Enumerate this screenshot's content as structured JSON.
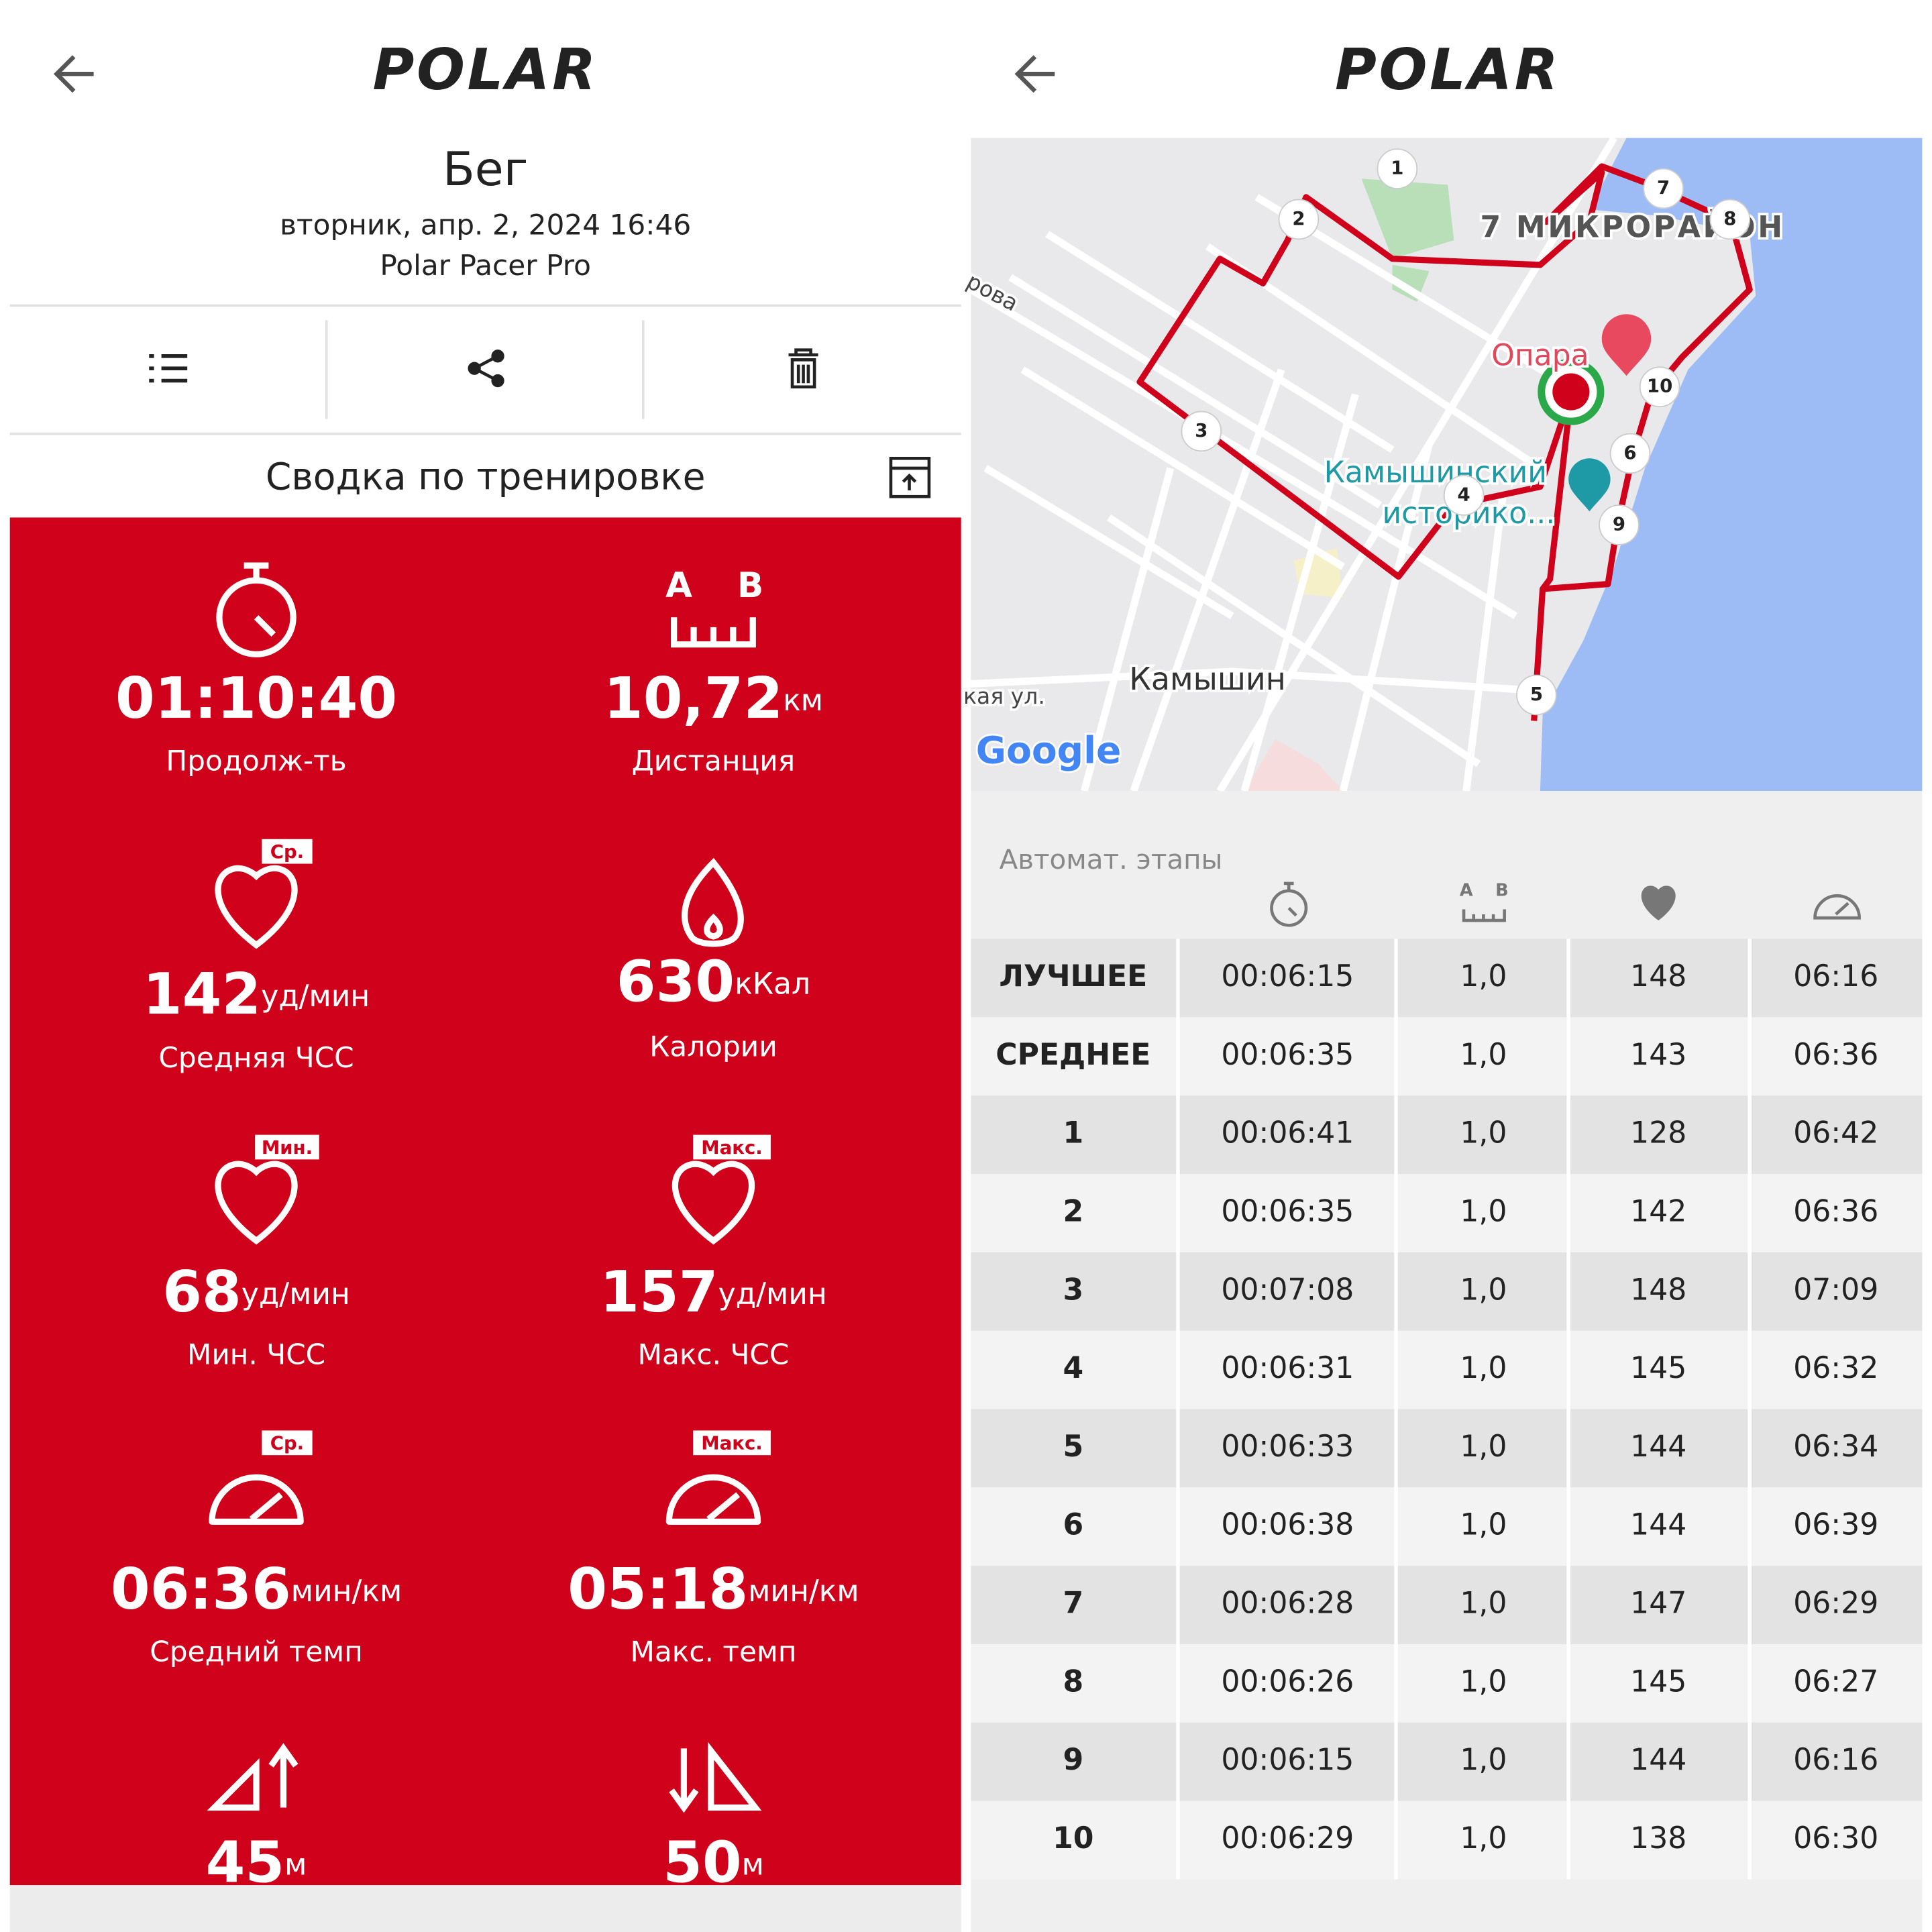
{
  "left": {
    "logo": "POLAR",
    "title": "Бег",
    "date": "вторник, апр. 2, 2024 16:46",
    "device": "Polar Pacer Pro",
    "section": "Сводка по тренировке",
    "distance_icon": {
      "a": "A",
      "b": "B"
    },
    "stats": [
      {
        "value": "01:10:40",
        "label": "Продолж-ть"
      },
      {
        "value": "10,72",
        "unit": "км",
        "label": "Дистанция"
      },
      {
        "value": "142",
        "unit": "уд/мин",
        "label": "Средняя ЧСС",
        "badge": "Ср."
      },
      {
        "value": "630",
        "unit": "кКал",
        "label": "Калории"
      },
      {
        "value": "68",
        "unit": "уд/мин",
        "label": "Мин. ЧСС",
        "badge": "Мин."
      },
      {
        "value": "157",
        "unit": "уд/мин",
        "label": "Макс. ЧСС",
        "badge": "Макс."
      },
      {
        "value": "06:36",
        "unit": "мин/км",
        "label": "Средний темп",
        "badge": "Ср."
      },
      {
        "value": "05:18",
        "unit": "мин/км",
        "label": "Макс. темп",
        "badge": "Макс."
      },
      {
        "value": "45",
        "unit": "м"
      },
      {
        "value": "50",
        "unit": "м"
      }
    ]
  },
  "right": {
    "logo": "POLAR",
    "map": {
      "labels": [
        "7 МИКРОРАЙОН",
        "Опара",
        "Камышинский",
        "историко...",
        "Камышин",
        "кая ул.",
        "рова"
      ],
      "attribution": "Google",
      "markers": [
        "1",
        "2",
        "3",
        "4",
        "5",
        "6",
        "7",
        "8",
        "9",
        "10"
      ]
    },
    "laps": {
      "title": "Автомат. этапы",
      "distance_icon": {
        "a": "A",
        "b": "B"
      },
      "rows": [
        [
          "ЛУЧШЕЕ",
          "00:06:15",
          "1,0",
          "148",
          "06:16"
        ],
        [
          "СРЕДНЕЕ",
          "00:06:35",
          "1,0",
          "143",
          "06:36"
        ],
        [
          "1",
          "00:06:41",
          "1,0",
          "128",
          "06:42"
        ],
        [
          "2",
          "00:06:35",
          "1,0",
          "142",
          "06:36"
        ],
        [
          "3",
          "00:07:08",
          "1,0",
          "148",
          "07:09"
        ],
        [
          "4",
          "00:06:31",
          "1,0",
          "145",
          "06:32"
        ],
        [
          "5",
          "00:06:33",
          "1,0",
          "144",
          "06:34"
        ],
        [
          "6",
          "00:06:38",
          "1,0",
          "144",
          "06:39"
        ],
        [
          "7",
          "00:06:28",
          "1,0",
          "147",
          "06:29"
        ],
        [
          "8",
          "00:06:26",
          "1,0",
          "145",
          "06:27"
        ],
        [
          "9",
          "00:06:15",
          "1,0",
          "144",
          "06:16"
        ],
        [
          "10",
          "00:06:29",
          "1,0",
          "138",
          "06:30"
        ]
      ]
    }
  }
}
